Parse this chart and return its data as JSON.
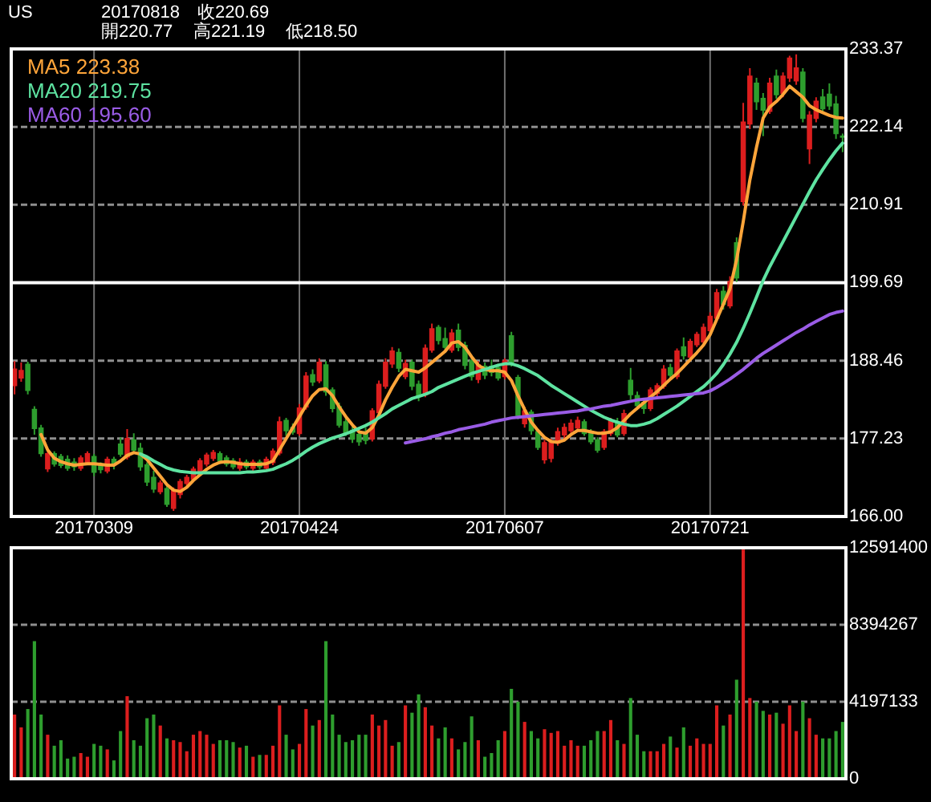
{
  "chart_data": [
    {
      "type": "candlestick",
      "title": "US",
      "subtitle": "20170818",
      "annotations": [
        "收220.69",
        "開220.77",
        "高221.19",
        "低218.50"
      ],
      "categories": [
        null,
        null,
        null,
        null,
        null,
        null,
        null,
        null,
        null,
        null,
        null,
        null,
        "20170309",
        null,
        null,
        null,
        null,
        null,
        null,
        null,
        null,
        null,
        null,
        null,
        null,
        null,
        null,
        null,
        null,
        null,
        null,
        null,
        null,
        null,
        null,
        null,
        null,
        null,
        null,
        null,
        null,
        null,
        null,
        "20170424",
        null,
        null,
        null,
        null,
        null,
        null,
        null,
        null,
        null,
        null,
        null,
        null,
        null,
        null,
        null,
        null,
        null,
        null,
        null,
        null,
        null,
        null,
        null,
        null,
        null,
        null,
        null,
        null,
        null,
        null,
        "20170607",
        null,
        null,
        null,
        null,
        null,
        null,
        null,
        null,
        null,
        null,
        null,
        null,
        null,
        null,
        null,
        null,
        null,
        null,
        null,
        null,
        null,
        null,
        null,
        null,
        null,
        null,
        null,
        null,
        null,
        null,
        "20170721",
        null,
        null,
        null,
        null,
        null,
        null,
        null,
        null,
        null,
        null,
        null,
        null,
        null,
        null,
        null,
        null,
        null,
        null,
        null,
        null
      ],
      "ohlc": [
        [
          184.9,
          188.4,
          183.6,
          187.2
        ],
        [
          186.0,
          188.2,
          185.4,
          187.0
        ],
        [
          187.9,
          188.3,
          183.6,
          184.2
        ],
        [
          181.4,
          181.9,
          177.8,
          178.7
        ],
        [
          178.7,
          179.2,
          174.6,
          175.1
        ],
        [
          172.9,
          175.6,
          172.4,
          175.0
        ],
        [
          175.0,
          175.4,
          173.2,
          173.6
        ],
        [
          174.6,
          175.0,
          173.0,
          173.4
        ],
        [
          174.2,
          174.8,
          172.6,
          173.0
        ],
        [
          173.8,
          174.4,
          172.6,
          173.2
        ],
        [
          173.0,
          174.8,
          172.6,
          174.4
        ],
        [
          173.8,
          175.4,
          173.4,
          175.0
        ],
        [
          174.6,
          175.0,
          171.8,
          172.4
        ],
        [
          173.4,
          173.8,
          172.2,
          172.8
        ],
        [
          172.6,
          174.6,
          172.2,
          174.2
        ],
        [
          174.2,
          174.6,
          172.8,
          173.6
        ],
        [
          176.4,
          177.4,
          174.6,
          175.0
        ],
        [
          174.6,
          178.6,
          174.2,
          177.2
        ],
        [
          177.0,
          178.0,
          175.0,
          175.6
        ],
        [
          175.8,
          176.6,
          172.6,
          173.2
        ],
        [
          173.4,
          173.8,
          170.4,
          171.0
        ],
        [
          171.6,
          172.6,
          169.4,
          170.0
        ],
        [
          169.6,
          171.2,
          169.2,
          170.8
        ],
        [
          170.0,
          170.4,
          167.4,
          167.8
        ],
        [
          167.2,
          170.2,
          166.8,
          169.8
        ],
        [
          169.2,
          171.4,
          168.6,
          171.0
        ],
        [
          170.8,
          172.0,
          170.2,
          171.6
        ],
        [
          171.4,
          173.2,
          171.0,
          172.8
        ],
        [
          172.4,
          174.4,
          172.0,
          174.0
        ],
        [
          173.6,
          175.2,
          173.2,
          174.8
        ],
        [
          174.4,
          175.6,
          174.0,
          175.2
        ],
        [
          175.0,
          175.4,
          173.6,
          174.0
        ],
        [
          174.4,
          174.8,
          173.2,
          173.6
        ],
        [
          174.0,
          174.4,
          172.8,
          173.2
        ],
        [
          173.0,
          174.4,
          172.6,
          173.8
        ],
        [
          173.8,
          174.2,
          172.8,
          173.2
        ],
        [
          173.0,
          174.2,
          172.6,
          173.8
        ],
        [
          173.8,
          174.2,
          172.8,
          173.2
        ],
        [
          173.0,
          174.6,
          172.8,
          174.2
        ],
        [
          173.8,
          175.8,
          173.4,
          175.4
        ],
        [
          175.2,
          180.4,
          174.8,
          179.6
        ],
        [
          179.8,
          180.2,
          177.6,
          178.4
        ],
        [
          178.8,
          179.4,
          177.8,
          178.2
        ],
        [
          178.0,
          182.2,
          177.6,
          181.6
        ],
        [
          181.8,
          186.8,
          181.4,
          186.2
        ],
        [
          186.4,
          187.2,
          184.8,
          185.4
        ],
        [
          185.6,
          188.8,
          185.2,
          188.2
        ],
        [
          187.8,
          188.4,
          183.4,
          184.0
        ],
        [
          184.2,
          184.6,
          181.0,
          181.6
        ],
        [
          181.8,
          182.4,
          178.8,
          179.2
        ],
        [
          179.6,
          180.2,
          177.6,
          178.0
        ],
        [
          178.4,
          179.0,
          176.6,
          177.2
        ],
        [
          177.8,
          178.4,
          176.2,
          176.8
        ],
        [
          178.2,
          178.8,
          176.4,
          177.0
        ],
        [
          177.2,
          181.6,
          176.8,
          181.2
        ],
        [
          181.0,
          185.6,
          180.6,
          185.0
        ],
        [
          184.8,
          188.8,
          184.4,
          188.2
        ],
        [
          188.0,
          190.4,
          187.4,
          189.8
        ],
        [
          189.6,
          190.2,
          186.8,
          187.4
        ],
        [
          186.2,
          188.6,
          185.8,
          188.0
        ],
        [
          188.2,
          188.6,
          184.2,
          184.8
        ],
        [
          185.0,
          185.6,
          182.6,
          183.4
        ],
        [
          183.6,
          190.8,
          183.2,
          190.2
        ],
        [
          190.0,
          193.8,
          189.6,
          193.0
        ],
        [
          193.2,
          193.6,
          190.8,
          191.4
        ],
        [
          191.6,
          193.2,
          189.6,
          190.4
        ],
        [
          190.0,
          193.0,
          189.6,
          192.4
        ],
        [
          192.8,
          193.8,
          189.8,
          190.4
        ],
        [
          190.6,
          191.2,
          187.2,
          187.8
        ],
        [
          188.4,
          189.0,
          185.6,
          186.2
        ],
        [
          185.8,
          188.4,
          185.2,
          187.8
        ],
        [
          187.6,
          188.2,
          185.8,
          186.4
        ],
        [
          187.6,
          188.6,
          186.2,
          186.8
        ],
        [
          187.4,
          188.0,
          185.6,
          186.0
        ],
        [
          186.2,
          188.8,
          185.8,
          188.4
        ],
        [
          192.0,
          192.6,
          187.6,
          188.0
        ],
        [
          186.0,
          186.4,
          180.0,
          180.6
        ],
        [
          179.4,
          181.8,
          178.8,
          181.2
        ],
        [
          181.0,
          181.4,
          177.8,
          178.4
        ],
        [
          178.2,
          178.6,
          175.6,
          176.0
        ],
        [
          174.2,
          177.0,
          173.6,
          176.6
        ],
        [
          174.4,
          177.2,
          173.8,
          176.8
        ],
        [
          176.6,
          178.8,
          176.2,
          178.2
        ],
        [
          177.8,
          179.4,
          177.2,
          178.8
        ],
        [
          178.4,
          180.0,
          178.0,
          179.4
        ],
        [
          178.8,
          180.4,
          178.4,
          179.8
        ],
        [
          179.6,
          180.0,
          177.6,
          178.0
        ],
        [
          178.2,
          178.6,
          176.4,
          176.8
        ],
        [
          177.0,
          177.4,
          175.2,
          175.6
        ],
        [
          176.0,
          178.6,
          175.6,
          178.2
        ],
        [
          178.0,
          180.2,
          177.6,
          179.8
        ],
        [
          179.4,
          180.2,
          177.4,
          177.8
        ],
        [
          178.0,
          181.4,
          177.6,
          180.8
        ],
        [
          185.6,
          187.4,
          182.8,
          183.6
        ],
        [
          183.4,
          184.0,
          181.4,
          182.0
        ],
        [
          182.4,
          183.0,
          180.8,
          181.6
        ],
        [
          181.6,
          184.6,
          181.2,
          184.2
        ],
        [
          183.8,
          185.2,
          183.2,
          184.8
        ],
        [
          184.8,
          187.8,
          184.4,
          187.2
        ],
        [
          187.4,
          188.0,
          185.8,
          186.4
        ],
        [
          186.2,
          190.2,
          185.8,
          189.8
        ],
        [
          190.4,
          191.8,
          188.6,
          189.2
        ],
        [
          189.0,
          191.6,
          188.6,
          191.2
        ],
        [
          190.8,
          192.6,
          190.4,
          192.2
        ],
        [
          191.2,
          193.8,
          190.8,
          193.2
        ],
        [
          192.8,
          195.4,
          192.4,
          194.8
        ],
        [
          194.6,
          198.8,
          194.2,
          198.2
        ],
        [
          198.4,
          199.2,
          195.8,
          196.6
        ],
        [
          196.4,
          200.6,
          196.0,
          199.8
        ],
        [
          205.4,
          206.2,
          199.8,
          200.4
        ],
        [
          211.4,
          225.6,
          210.8,
          222.8
        ],
        [
          222.6,
          230.6,
          221.8,
          229.4
        ],
        [
          228.4,
          229.2,
          224.6,
          225.8
        ],
        [
          226.2,
          227.0,
          220.8,
          224.6
        ],
        [
          224.4,
          229.2,
          224.0,
          228.4
        ],
        [
          229.4,
          230.4,
          226.2,
          226.8
        ],
        [
          227.0,
          230.0,
          226.4,
          229.4
        ],
        [
          229.2,
          232.4,
          228.6,
          232.0
        ],
        [
          228.8,
          232.6,
          228.2,
          230.6
        ],
        [
          230.0,
          230.6,
          222.8,
          223.4
        ],
        [
          219.0,
          224.4,
          216.8,
          223.8
        ],
        [
          223.4,
          226.4,
          222.8,
          225.8
        ],
        [
          226.4,
          227.6,
          224.2,
          224.8
        ],
        [
          226.8,
          228.4,
          224.6,
          225.2
        ],
        [
          225.4,
          226.6,
          220.4,
          221.2
        ],
        [
          220.77,
          221.19,
          218.5,
          220.69
        ]
      ],
      "colors": [
        "#dc1e1e",
        "#dc1e1e",
        "#2e9e2e",
        "#2e9e2e",
        "#2e9e2e",
        "#dc1e1e",
        "#2e9e2e",
        "#2e9e2e",
        "#2e9e2e",
        "#2e9e2e",
        "#dc1e1e",
        "#dc1e1e",
        "#2e9e2e",
        "#2e9e2e",
        "#dc1e1e",
        "#2e9e2e",
        "#2e9e2e",
        "#dc1e1e",
        "#2e9e2e",
        "#2e9e2e",
        "#2e9e2e",
        "#2e9e2e",
        "#dc1e1e",
        "#2e9e2e",
        "#dc1e1e",
        "#dc1e1e",
        "#dc1e1e",
        "#dc1e1e",
        "#dc1e1e",
        "#dc1e1e",
        "#dc1e1e",
        "#2e9e2e",
        "#2e9e2e",
        "#2e9e2e",
        "#dc1e1e",
        "#2e9e2e",
        "#dc1e1e",
        "#2e9e2e",
        "#dc1e1e",
        "#dc1e1e",
        "#dc1e1e",
        "#2e9e2e",
        "#2e9e2e",
        "#dc1e1e",
        "#dc1e1e",
        "#2e9e2e",
        "#dc1e1e",
        "#2e9e2e",
        "#2e9e2e",
        "#2e9e2e",
        "#2e9e2e",
        "#2e9e2e",
        "#2e9e2e",
        "#2e9e2e",
        "#dc1e1e",
        "#dc1e1e",
        "#dc1e1e",
        "#dc1e1e",
        "#2e9e2e",
        "#dc1e1e",
        "#2e9e2e",
        "#2e9e2e",
        "#dc1e1e",
        "#dc1e1e",
        "#2e9e2e",
        "#2e9e2e",
        "#dc1e1e",
        "#2e9e2e",
        "#2e9e2e",
        "#2e9e2e",
        "#dc1e1e",
        "#2e9e2e",
        "#2e9e2e",
        "#2e9e2e",
        "#dc1e1e",
        "#2e9e2e",
        "#2e9e2e",
        "#dc1e1e",
        "#2e9e2e",
        "#2e9e2e",
        "#dc1e1e",
        "#dc1e1e",
        "#dc1e1e",
        "#dc1e1e",
        "#dc1e1e",
        "#dc1e1e",
        "#2e9e2e",
        "#2e9e2e",
        "#2e9e2e",
        "#dc1e1e",
        "#dc1e1e",
        "#2e9e2e",
        "#dc1e1e",
        "#2e9e2e",
        "#2e9e2e",
        "#2e9e2e",
        "#dc1e1e",
        "#dc1e1e",
        "#dc1e1e",
        "#2e9e2e",
        "#dc1e1e",
        "#2e9e2e",
        "#dc1e1e",
        "#dc1e1e",
        "#dc1e1e",
        "#dc1e1e",
        "#dc1e1e",
        "#2e9e2e",
        "#dc1e1e",
        "#2e9e2e",
        "#dc1e1e",
        "#dc1e1e",
        "#2e9e2e",
        "#2e9e2e",
        "#dc1e1e",
        "#2e9e2e",
        "#dc1e1e",
        "#dc1e1e",
        "#dc1e1e",
        "#2e9e2e",
        "#dc1e1e",
        "#dc1e1e",
        "#2e9e2e",
        "#2e9e2e",
        "#2e9e2e",
        "#2e9e2e"
      ],
      "series": [
        {
          "name": "MA5 223.38",
          "type": "line",
          "color": "#ffa53a",
          "values": [
            null,
            null,
            null,
            null,
            177.8,
            175.6,
            174.4,
            173.9,
            173.6,
            173.4,
            173.5,
            173.6,
            173.6,
            173.5,
            173.4,
            173.4,
            174.0,
            174.8,
            175.2,
            175.0,
            174.2,
            173.0,
            171.8,
            170.6,
            169.8,
            169.6,
            170.2,
            171.2,
            172.0,
            172.8,
            173.4,
            173.8,
            173.9,
            173.8,
            173.6,
            173.5,
            173.5,
            173.5,
            173.6,
            174.0,
            175.6,
            177.2,
            178.8,
            180.4,
            182.0,
            183.4,
            184.3,
            184.4,
            183.4,
            181.8,
            180.4,
            179.2,
            178.2,
            178.0,
            178.8,
            180.6,
            182.8,
            184.6,
            186.2,
            187.2,
            187.0,
            186.8,
            187.4,
            188.2,
            189.0,
            189.8,
            191.0,
            191.2,
            190.4,
            189.0,
            187.8,
            187.2,
            187.0,
            187.0,
            186.8,
            185.6,
            183.4,
            181.4,
            179.6,
            178.4,
            177.4,
            176.8,
            176.7,
            177.0,
            177.8,
            178.4,
            178.4,
            178.2,
            178.0,
            178.0,
            178.2,
            178.8,
            179.8,
            180.8,
            181.6,
            182.4,
            183.2,
            184.0,
            184.9,
            185.8,
            186.6,
            187.6,
            188.6,
            189.6,
            190.7,
            192.2,
            194.4,
            196.6,
            198.8,
            203.0,
            208.5,
            214.5,
            219.2,
            223.4,
            225.0,
            225.8,
            226.8,
            228.0,
            227.2,
            226.4,
            225.2,
            224.6,
            224.2,
            223.8,
            223.5,
            223.4
          ]
        },
        {
          "name": "MA20 219.75",
          "type": "line",
          "color": "#5ee3a1",
          "values": [
            null,
            null,
            null,
            null,
            null,
            null,
            null,
            null,
            null,
            null,
            null,
            null,
            null,
            null,
            null,
            null,
            null,
            null,
            null,
            175.0,
            174.6,
            174.0,
            173.5,
            173.0,
            172.7,
            172.5,
            172.4,
            172.3,
            172.3,
            172.3,
            172.3,
            172.3,
            172.3,
            172.3,
            172.3,
            172.4,
            172.4,
            172.5,
            172.6,
            172.8,
            173.2,
            173.6,
            174.1,
            174.7,
            175.4,
            176.0,
            176.5,
            176.9,
            177.3,
            177.6,
            177.9,
            178.3,
            178.7,
            179.1,
            179.6,
            180.2,
            180.8,
            181.5,
            182.0,
            182.5,
            183.0,
            183.3,
            183.6,
            184.0,
            184.6,
            185.0,
            185.4,
            185.8,
            186.2,
            186.6,
            186.9,
            187.2,
            187.5,
            187.8,
            188.0,
            188.0,
            187.7,
            187.3,
            186.8,
            186.3,
            185.6,
            184.9,
            184.3,
            183.7,
            183.1,
            182.5,
            181.9,
            181.3,
            180.8,
            180.3,
            179.9,
            179.6,
            179.3,
            179.1,
            179.1,
            179.3,
            179.6,
            180.1,
            180.7,
            181.3,
            181.9,
            182.6,
            183.3,
            184.0,
            184.7,
            185.6,
            186.6,
            187.9,
            189.4,
            191.1,
            193.1,
            195.3,
            197.6,
            200.0,
            202.0,
            203.8,
            205.6,
            207.4,
            209.2,
            211.0,
            212.8,
            214.5,
            216.0,
            217.4,
            218.7,
            219.8
          ]
        },
        {
          "name": "MA60 195.60",
          "type": "line",
          "color": "#9a5ce6",
          "values": [
            null,
            null,
            null,
            null,
            null,
            null,
            null,
            null,
            null,
            null,
            null,
            null,
            null,
            null,
            null,
            null,
            null,
            null,
            null,
            null,
            null,
            null,
            null,
            null,
            null,
            null,
            null,
            null,
            null,
            null,
            null,
            null,
            null,
            null,
            null,
            null,
            null,
            null,
            null,
            null,
            null,
            null,
            null,
            null,
            null,
            null,
            null,
            null,
            null,
            null,
            null,
            null,
            null,
            null,
            null,
            null,
            null,
            null,
            null,
            176.6,
            176.8,
            177.0,
            177.2,
            177.5,
            177.7,
            178.0,
            178.2,
            178.5,
            178.7,
            178.9,
            179.1,
            179.3,
            179.6,
            179.8,
            180.0,
            180.2,
            180.3,
            180.4,
            180.5,
            180.6,
            180.7,
            180.8,
            180.9,
            181.0,
            181.1,
            181.2,
            181.4,
            181.5,
            181.7,
            181.9,
            182.0,
            182.2,
            182.4,
            182.6,
            182.8,
            182.9,
            183.0,
            183.1,
            183.2,
            183.3,
            183.4,
            183.5,
            183.6,
            183.7,
            183.8,
            184.1,
            184.6,
            185.2,
            185.8,
            186.5,
            187.2,
            188.0,
            188.8,
            189.5,
            190.1,
            190.7,
            191.3,
            191.9,
            192.5,
            193.0,
            193.6,
            194.1,
            194.6,
            195.1,
            195.4,
            195.6
          ]
        }
      ],
      "ylim": [
        166,
        233.37
      ],
      "yticks": [
        {
          "value": 166,
          "label": "166.00"
        },
        177.23,
        188.46,
        199.69,
        210.91,
        222.14,
        233.37
      ],
      "grid": true,
      "legend": "top left",
      "ref_lines": [
        {
          "axis": "y",
          "value": 199.69,
          "color": "#ffffff"
        }
      ]
    },
    {
      "type": "bar",
      "categories": [
        null,
        null,
        null,
        null,
        null,
        null,
        null,
        null,
        null,
        null,
        null,
        null,
        null,
        null,
        null,
        null,
        null,
        null,
        null,
        null,
        null,
        null,
        null,
        null,
        null,
        null,
        null,
        null,
        null,
        null,
        null,
        null,
        null,
        null,
        null,
        null,
        null,
        null,
        null,
        null,
        null,
        null,
        null,
        null,
        null,
        null,
        null,
        null,
        null,
        null,
        null,
        null,
        null,
        null,
        null,
        null,
        null,
        null,
        null,
        null,
        null,
        null,
        null,
        null,
        null,
        null,
        null,
        null,
        null,
        null,
        null,
        null,
        null,
        null,
        null,
        null,
        null,
        null,
        null,
        null,
        null,
        null,
        null,
        null,
        null,
        null,
        null,
        null,
        null,
        null,
        null,
        null,
        null,
        null,
        null,
        null,
        null,
        null,
        null,
        null,
        null,
        null,
        null,
        null,
        null,
        null,
        null,
        null,
        null,
        null,
        null,
        null,
        null,
        null,
        null,
        null,
        null,
        null,
        null,
        null,
        null,
        null,
        null,
        null,
        null,
        null
      ],
      "values": [
        3500000,
        2800000,
        3800000,
        7500000,
        3500000,
        2400000,
        1800000,
        2100000,
        1100000,
        1200000,
        1400000,
        1200000,
        1900000,
        1800000,
        1600000,
        1000000,
        2600000,
        4500000,
        2100000,
        1800000,
        3300000,
        3500000,
        2900000,
        2200000,
        2100000,
        2000000,
        1500000,
        2400000,
        2600000,
        2400000,
        1900000,
        2100000,
        2100000,
        2000000,
        1700000,
        1800000,
        1200000,
        1300000,
        1300000,
        1800000,
        4000000,
        2400000,
        1600000,
        1900000,
        3800000,
        2900000,
        3200000,
        7500000,
        3500000,
        2400000,
        2000000,
        2100000,
        2400000,
        2400000,
        3500000,
        2900000,
        3200000,
        1800000,
        2000000,
        4000000,
        3600000,
        4600000,
        3900000,
        2900000,
        2200000,
        2800000,
        2200000,
        1600000,
        2000000,
        3400000,
        2100000,
        1200000,
        1400000,
        2100000,
        2600000,
        4900000,
        4200000,
        3100000,
        2600000,
        2200000,
        2700000,
        2500000,
        2600000,
        1800000,
        2100000,
        1800000,
        1800000,
        2100000,
        2600000,
        2600000,
        3200000,
        2100000,
        1900000,
        4400000,
        2400000,
        1500000,
        1500000,
        1500000,
        1900000,
        2300000,
        1700000,
        2800000,
        1800000,
        2200000,
        1900000,
        1900000,
        4000000,
        2900000,
        3500000,
        5400000,
        12500000,
        4400000,
        4200000,
        3700000,
        3500000,
        3600000,
        3000000,
        4000000,
        2600000,
        4200000,
        3300000,
        2400000,
        2200000,
        2200000,
        2600000,
        3100000
      ],
      "colors": [
        "#dc1e1e",
        "#dc1e1e",
        "#2e9e2e",
        "#2e9e2e",
        "#2e9e2e",
        "#dc1e1e",
        "#2e9e2e",
        "#2e9e2e",
        "#2e9e2e",
        "#2e9e2e",
        "#dc1e1e",
        "#dc1e1e",
        "#2e9e2e",
        "#2e9e2e",
        "#dc1e1e",
        "#2e9e2e",
        "#2e9e2e",
        "#dc1e1e",
        "#2e9e2e",
        "#2e9e2e",
        "#2e9e2e",
        "#2e9e2e",
        "#dc1e1e",
        "#2e9e2e",
        "#dc1e1e",
        "#dc1e1e",
        "#dc1e1e",
        "#dc1e1e",
        "#dc1e1e",
        "#dc1e1e",
        "#dc1e1e",
        "#2e9e2e",
        "#2e9e2e",
        "#2e9e2e",
        "#dc1e1e",
        "#2e9e2e",
        "#dc1e1e",
        "#2e9e2e",
        "#dc1e1e",
        "#dc1e1e",
        "#dc1e1e",
        "#2e9e2e",
        "#2e9e2e",
        "#dc1e1e",
        "#dc1e1e",
        "#2e9e2e",
        "#dc1e1e",
        "#2e9e2e",
        "#2e9e2e",
        "#2e9e2e",
        "#2e9e2e",
        "#2e9e2e",
        "#2e9e2e",
        "#2e9e2e",
        "#dc1e1e",
        "#dc1e1e",
        "#dc1e1e",
        "#dc1e1e",
        "#2e9e2e",
        "#dc1e1e",
        "#2e9e2e",
        "#2e9e2e",
        "#dc1e1e",
        "#dc1e1e",
        "#2e9e2e",
        "#2e9e2e",
        "#dc1e1e",
        "#2e9e2e",
        "#2e9e2e",
        "#2e9e2e",
        "#dc1e1e",
        "#2e9e2e",
        "#2e9e2e",
        "#2e9e2e",
        "#dc1e1e",
        "#2e9e2e",
        "#2e9e2e",
        "#dc1e1e",
        "#2e9e2e",
        "#2e9e2e",
        "#dc1e1e",
        "#dc1e1e",
        "#dc1e1e",
        "#dc1e1e",
        "#dc1e1e",
        "#dc1e1e",
        "#2e9e2e",
        "#2e9e2e",
        "#2e9e2e",
        "#dc1e1e",
        "#dc1e1e",
        "#2e9e2e",
        "#dc1e1e",
        "#2e9e2e",
        "#2e9e2e",
        "#2e9e2e",
        "#dc1e1e",
        "#dc1e1e",
        "#dc1e1e",
        "#2e9e2e",
        "#dc1e1e",
        "#2e9e2e",
        "#dc1e1e",
        "#dc1e1e",
        "#dc1e1e",
        "#dc1e1e",
        "#dc1e1e",
        "#2e9e2e",
        "#dc1e1e",
        "#2e9e2e",
        "#dc1e1e",
        "#dc1e1e",
        "#2e9e2e",
        "#2e9e2e",
        "#dc1e1e",
        "#2e9e2e",
        "#dc1e1e",
        "#dc1e1e",
        "#dc1e1e",
        "#2e9e2e",
        "#dc1e1e",
        "#dc1e1e",
        "#2e9e2e",
        "#2e9e2e",
        "#2e9e2e",
        "#2e9e2e"
      ],
      "ylim": [
        0,
        12591400
      ],
      "yticks": [
        0,
        4197133,
        8394267,
        12591400
      ],
      "grid": "y",
      "tick_labels": "y"
    }
  ]
}
